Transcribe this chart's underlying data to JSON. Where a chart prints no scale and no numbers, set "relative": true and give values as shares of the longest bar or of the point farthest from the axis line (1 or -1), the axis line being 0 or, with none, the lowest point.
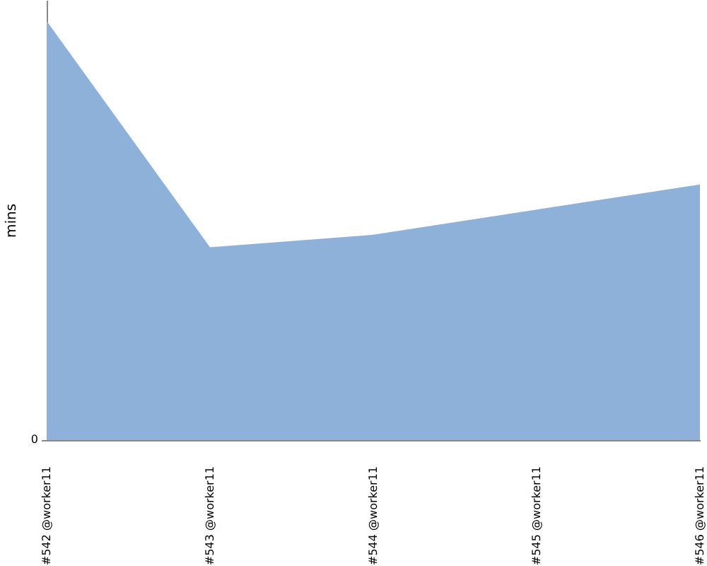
{
  "chart_data": {
    "type": "area",
    "ylabel": "mins",
    "categories": [
      "#542 @worker11",
      "#543 @worker11",
      "#544 @worker11",
      "#545 @worker11",
      "#546 @worker11"
    ],
    "values": [
      1,
      0.46,
      0.49,
      0.55,
      0.61
    ],
    "color": "#8eb1d9",
    "relative": true,
    "grid": false,
    "annotations": [
      "0"
    ]
  }
}
